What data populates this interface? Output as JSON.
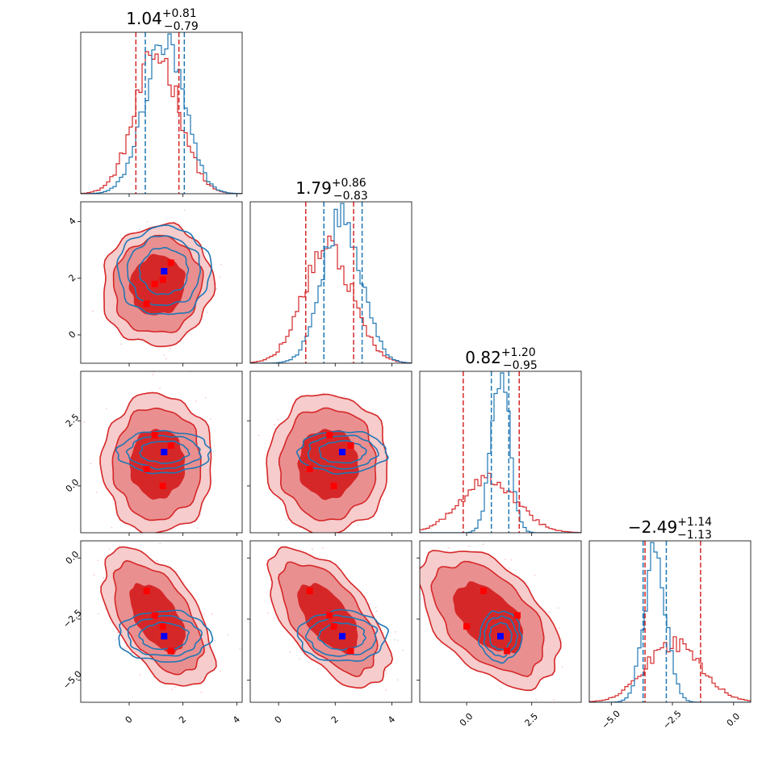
{
  "colors": {
    "red": "#d62728",
    "blue": "#1f77b4",
    "red_fill_inner": "#d62728",
    "red_fill_mid": "#ea8f90",
    "red_fill_outer": "#f6cccc",
    "marker_red": "#ff0000",
    "marker_blue": "#0000ff"
  },
  "chart_data": {
    "type": "corner",
    "parameters": 4,
    "titles": [
      {
        "median": "1.04",
        "plus": "+0.81",
        "minus": "−0.79"
      },
      {
        "median": "1.79",
        "plus": "+0.86",
        "minus": "−0.83"
      },
      {
        "median": "0.82",
        "plus": "+1.20",
        "minus": "−0.95"
      },
      {
        "median": "−2.49",
        "plus": "+1.14",
        "minus": "−1.13"
      }
    ],
    "ranges": [
      [
        -1.8,
        4.2
      ],
      [
        -1.0,
        4.7
      ],
      [
        -1.8,
        4.4
      ],
      [
        -5.9,
        0.7
      ]
    ],
    "ticks": [
      {
        "values": [
          0,
          2,
          4
        ],
        "labels": [
          "0",
          "2",
          "4"
        ]
      },
      {
        "values": [
          0,
          2,
          4
        ],
        "labels": [
          "0",
          "2",
          "4"
        ]
      },
      {
        "values": [
          0.0,
          2.5
        ],
        "labels": [
          "0.0",
          "2.5"
        ]
      },
      {
        "values": [
          -5.0,
          -2.5,
          0.0
        ],
        "labels": [
          "−5.0",
          "−2.5",
          "0.0"
        ]
      }
    ],
    "series": [
      {
        "name": "",
        "color": "#d62728",
        "means": [
          1.05,
          1.75,
          0.85,
          -2.45
        ],
        "sigmas": [
          0.82,
          0.85,
          1.07,
          1.13
        ],
        "quantile_lines": [
          [
            0.25,
            1.85
          ],
          [
            0.96,
            2.65
          ],
          [
            -0.13,
            2.02
          ],
          [
            -3.62,
            -1.35
          ]
        ]
      },
      {
        "name": "",
        "color": "#1f77b4",
        "means": [
          1.3,
          2.25,
          1.3,
          -3.2
        ],
        "sigmas": [
          0.75,
          0.68,
          0.35,
          0.45
        ],
        "quantile_lines": [
          [
            0.6,
            2.05
          ],
          [
            1.6,
            2.95
          ],
          [
            0.95,
            1.62
          ],
          [
            -3.7,
            -2.75
          ]
        ]
      }
    ],
    "red_markers": [
      [
        1.55,
        2.55,
        1.55,
        -3.8
      ],
      [
        0.95,
        1.8,
        1.95,
        -2.35
      ],
      [
        0.65,
        1.1,
        0.65,
        -1.35
      ],
      [
        1.25,
        1.95,
        0.0,
        -2.8
      ]
    ],
    "blue_marker": [
      1.3,
      2.25,
      1.3,
      -3.2
    ]
  }
}
